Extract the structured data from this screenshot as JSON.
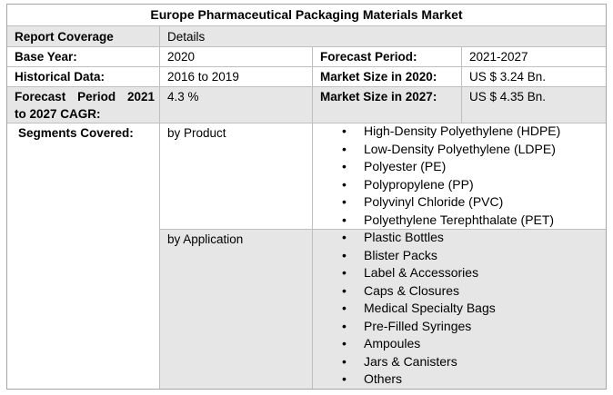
{
  "title": "Europe Pharmaceutical Packaging Materials Market",
  "header": {
    "col1": "Report Coverage",
    "col2": "Details"
  },
  "base_year": {
    "label": "Base Year:",
    "value": "2020"
  },
  "forecast_period": {
    "label": "Forecast Period:",
    "value": "2021-2027"
  },
  "historical_data": {
    "label": "Historical Data:",
    "value": "2016 to 2019"
  },
  "market_size_2020": {
    "label": "Market Size in 2020:",
    "value": "US $ 3.24 Bn."
  },
  "cagr": {
    "label_line1": "Forecast Period 2021",
    "label_line2": "to 2027 CAGR:",
    "value": "4.3 %"
  },
  "market_size_2027": {
    "label": "Market Size in 2027:",
    "value": "US $ 4.35 Bn."
  },
  "segments": {
    "label": "Segments Covered:",
    "by_product": {
      "label": "by Product",
      "items": [
        "High-Density Polyethylene (HDPE)",
        "Low-Density Polyethylene (LDPE)",
        "Polyester (PE)",
        "Polypropylene (PP)",
        "Polyvinyl Chloride (PVC)",
        "Polyethylene Terephthalate (PET)"
      ]
    },
    "by_application": {
      "label": "by Application",
      "items": [
        "Plastic Bottles",
        "Blister Packs",
        "Label & Accessories",
        "Caps & Closures",
        "Medical Specialty Bags",
        "Pre-Filled Syringes",
        "Ampoules",
        "Jars & Canisters",
        "Others"
      ]
    }
  },
  "colors": {
    "row_shade": "#e7e6e6",
    "border": "#a6a6a6"
  },
  "icons": {
    "bullet": "bullet-icon"
  }
}
